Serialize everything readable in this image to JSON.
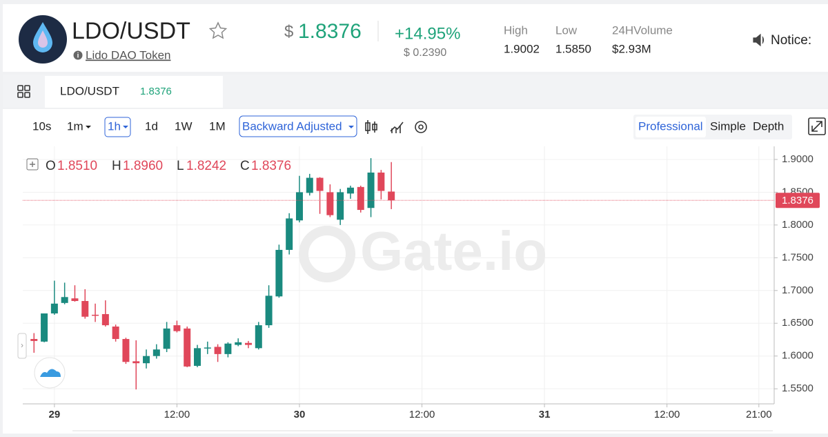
{
  "header": {
    "pair": "LDO/USDT",
    "token_name": "Lido DAO Token",
    "currency": "$",
    "price": "1.8376",
    "change_pct": "+14.95%",
    "change_abs": "$ 0.2390",
    "stats": [
      {
        "label": "High",
        "value": "1.9002"
      },
      {
        "label": "Low",
        "value": "1.5850"
      },
      {
        "label": "24HVolume",
        "value": "$2.93M"
      }
    ],
    "notice": "Notice:"
  },
  "tab": {
    "pair": "LDO/USDT",
    "price": "1.8376"
  },
  "toolbar": {
    "intervals": [
      "10s",
      "1m",
      "1h",
      "1d",
      "1W",
      "1M"
    ],
    "adjust": "Backward Adjusted",
    "views": [
      "Professional",
      "Simple",
      "Depth"
    ]
  },
  "ohlc_header": [
    {
      "label": "O",
      "value": "1.8510"
    },
    {
      "label": "H",
      "value": "1.8960"
    },
    {
      "label": "L",
      "value": "1.8242"
    },
    {
      "label": "C",
      "value": "1.8376"
    }
  ],
  "watermark": "Gate.io",
  "chart_data": {
    "type": "candlestick",
    "x": [
      -2,
      -1,
      0,
      1,
      2,
      3,
      4,
      5,
      6,
      7,
      8,
      9,
      10,
      11,
      12,
      13,
      14,
      15,
      16,
      17,
      18,
      19,
      20,
      21,
      22,
      23,
      24,
      25,
      26,
      27,
      28,
      29,
      30,
      31,
      32,
      33
    ],
    "open": [
      1.626,
      1.622,
      1.665,
      1.681,
      1.688,
      1.684,
      1.663,
      1.664,
      1.645,
      1.626,
      1.592,
      1.589,
      1.6,
      1.611,
      1.647,
      1.642,
      1.585,
      1.612,
      1.614,
      1.603,
      1.617,
      1.62,
      1.612,
      1.647,
      1.691,
      1.762,
      1.807,
      1.849,
      1.872,
      1.85,
      1.808,
      1.848,
      1.858,
      1.826,
      1.88,
      1.851
    ],
    "high": [
      1.635,
      1.665,
      1.715,
      1.712,
      1.708,
      1.702,
      1.68,
      1.685,
      1.648,
      1.628,
      1.624,
      1.61,
      1.618,
      1.652,
      1.654,
      1.645,
      1.617,
      1.622,
      1.618,
      1.621,
      1.627,
      1.623,
      1.652,
      1.708,
      1.77,
      1.818,
      1.875,
      1.878,
      1.873,
      1.862,
      1.855,
      1.86,
      1.86,
      1.902,
      1.884,
      1.896
    ],
    "low": [
      1.605,
      1.621,
      1.663,
      1.679,
      1.683,
      1.657,
      1.652,
      1.645,
      1.622,
      1.588,
      1.549,
      1.581,
      1.596,
      1.606,
      1.636,
      1.583,
      1.583,
      1.603,
      1.591,
      1.598,
      1.615,
      1.612,
      1.61,
      1.643,
      1.689,
      1.755,
      1.804,
      1.845,
      1.817,
      1.812,
      1.8,
      1.84,
      1.819,
      1.812,
      1.839,
      1.8242
    ],
    "close": [
      1.623,
      1.665,
      1.68,
      1.69,
      1.684,
      1.66,
      1.662,
      1.647,
      1.626,
      1.591,
      1.589,
      1.6,
      1.61,
      1.642,
      1.638,
      1.584,
      1.612,
      1.613,
      1.603,
      1.619,
      1.621,
      1.617,
      1.647,
      1.692,
      1.762,
      1.81,
      1.85,
      1.872,
      1.852,
      1.815,
      1.85,
      1.857,
      1.823,
      1.88,
      1.852,
      1.8376
    ],
    "up_color": "#1a8a7f",
    "down_color": "#e0475a",
    "last_price": 1.8376,
    "xlim": [
      -3.1,
      70.5
    ],
    "xticks": [
      {
        "value": 0,
        "label": "29"
      },
      {
        "value": 12,
        "label": "12:00"
      },
      {
        "value": 24,
        "label": "30"
      },
      {
        "value": 36,
        "label": "12:00"
      },
      {
        "value": 48,
        "label": "31"
      },
      {
        "value": 60,
        "label": "12:00"
      },
      {
        "value": 69,
        "label": "21:00"
      }
    ],
    "ylim": [
      1.527,
      1.92
    ],
    "yticks": [
      {
        "value": 1.55,
        "label": "1.5500"
      },
      {
        "value": 1.6,
        "label": "1.6000"
      },
      {
        "value": 1.65,
        "label": "1.6500"
      },
      {
        "value": 1.7,
        "label": "1.7000"
      },
      {
        "value": 1.75,
        "label": "1.7500"
      },
      {
        "value": 1.8,
        "label": "1.8000"
      },
      {
        "value": 1.85,
        "label": "1.8500"
      },
      {
        "value": 1.9,
        "label": "1.9000"
      }
    ],
    "grid": true
  }
}
